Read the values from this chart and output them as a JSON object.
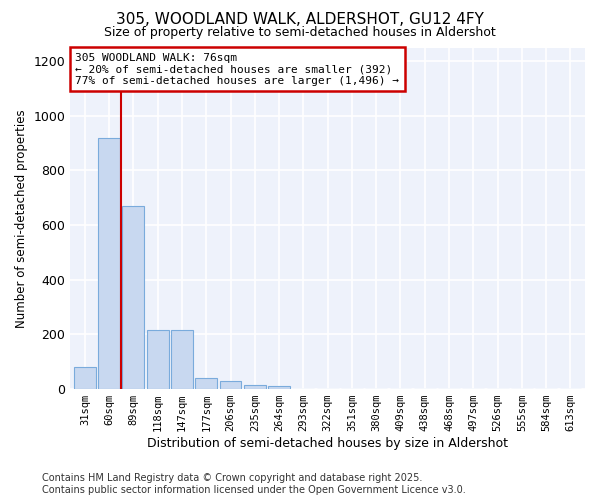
{
  "title": "305, WOODLAND WALK, ALDERSHOT, GU12 4FY",
  "subtitle": "Size of property relative to semi-detached houses in Aldershot",
  "xlabel": "Distribution of semi-detached houses by size in Aldershot",
  "ylabel": "Number of semi-detached properties",
  "categories": [
    "31sqm",
    "60sqm",
    "89sqm",
    "118sqm",
    "147sqm",
    "177sqm",
    "206sqm",
    "235sqm",
    "264sqm",
    "293sqm",
    "322sqm",
    "351sqm",
    "380sqm",
    "409sqm",
    "438sqm",
    "468sqm",
    "497sqm",
    "526sqm",
    "555sqm",
    "584sqm",
    "613sqm"
  ],
  "values": [
    80,
    920,
    670,
    215,
    215,
    40,
    30,
    15,
    10,
    0,
    0,
    0,
    0,
    0,
    0,
    0,
    0,
    0,
    0,
    0,
    0
  ],
  "bar_color": "#c8d8f0",
  "bar_edge_color": "#7aabdc",
  "red_line_x": 1.5,
  "annotation_title": "305 WOODLAND WALK: 76sqm",
  "annotation_line1": "← 20% of semi-detached houses are smaller (392)",
  "annotation_line2": "77% of semi-detached houses are larger (1,496) →",
  "annotation_box_color": "#ffffff",
  "annotation_box_edge": "#cc0000",
  "red_line_color": "#cc0000",
  "ylim": [
    0,
    1250
  ],
  "yticks": [
    0,
    200,
    400,
    600,
    800,
    1000,
    1200
  ],
  "background_color": "#eef2fb",
  "grid_color": "#ffffff",
  "footer1": "Contains HM Land Registry data © Crown copyright and database right 2025.",
  "footer2": "Contains public sector information licensed under the Open Government Licence v3.0."
}
